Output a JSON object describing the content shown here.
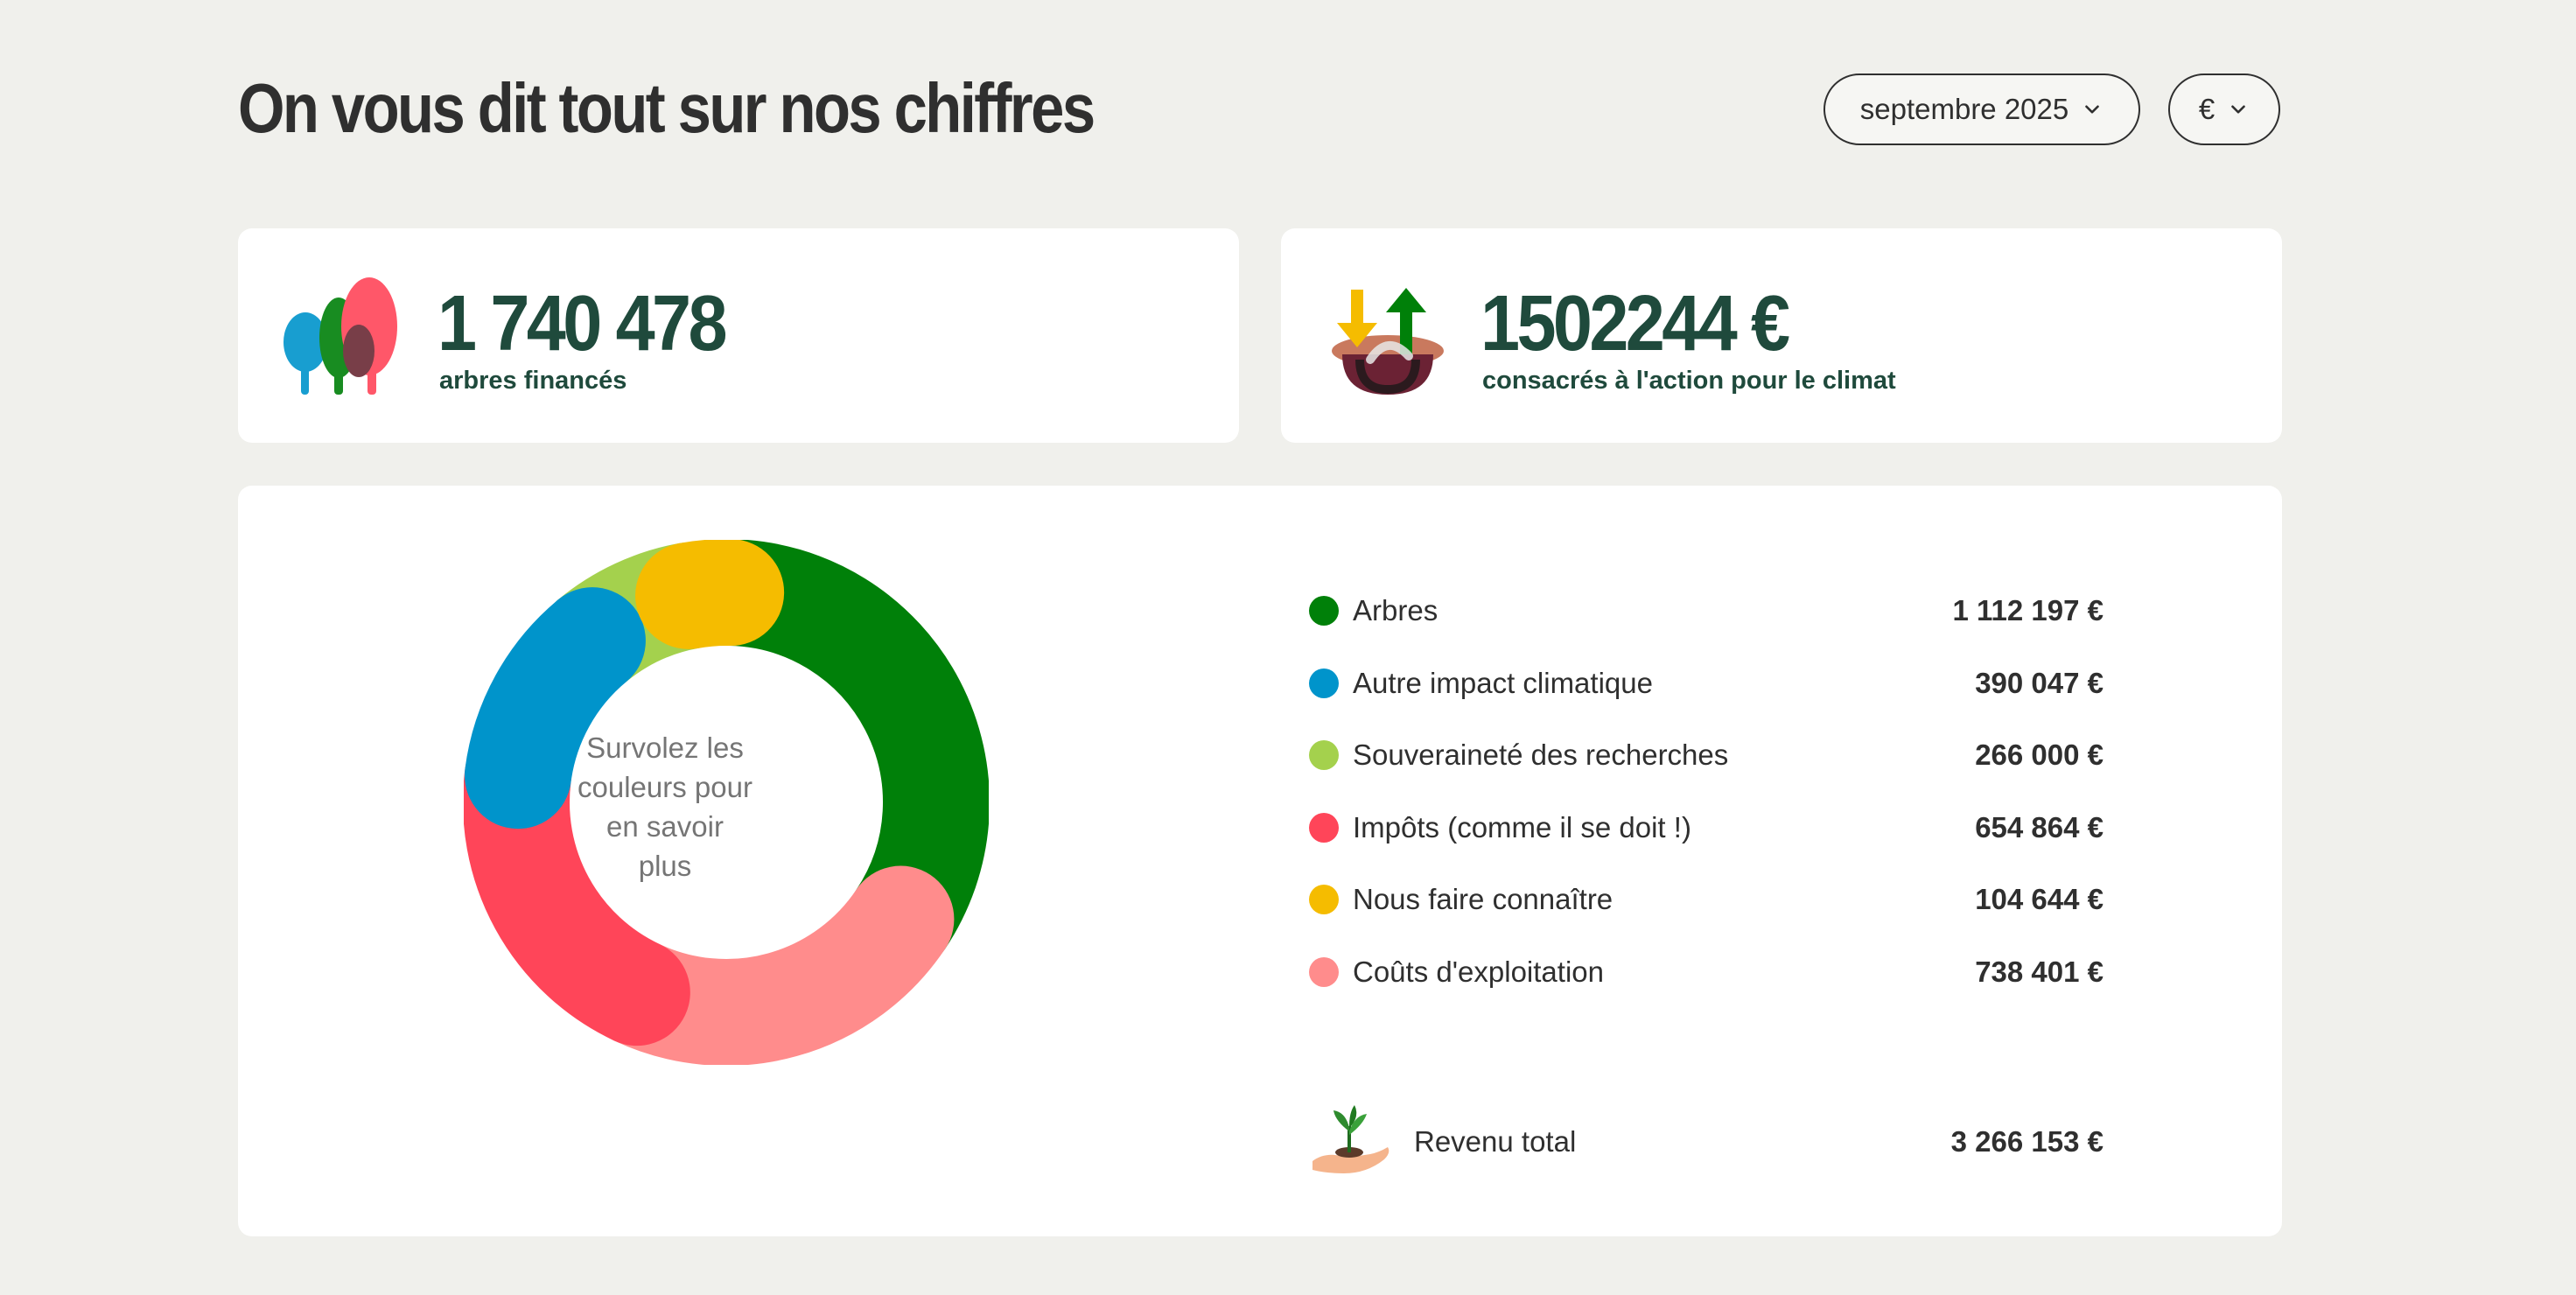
{
  "header": {
    "title": "On vous dit tout sur nos chiffres",
    "month_select": "septembre 2025",
    "currency_select": "€"
  },
  "stats": [
    {
      "value": "1 740 478",
      "label": "arbres financés",
      "icon": "trees-icon"
    },
    {
      "value": "1502244 €",
      "label": "consacrés à l'action pour le climat",
      "icon": "climate-action-icon"
    }
  ],
  "breakdown": {
    "hint": "Survolez les couleurs pour en savoir plus",
    "items": [
      {
        "label": "Arbres",
        "value": "1 112 197 €",
        "amount": 1112197,
        "color": "#008009"
      },
      {
        "label": "Autre impact climatique",
        "value": "390 047 €",
        "amount": 390047,
        "color": "#0094cb"
      },
      {
        "label": "Souveraineté des recherches",
        "value": "266 000 €",
        "amount": 266000,
        "color": "#a4d14d"
      },
      {
        "label": "Impôts (comme il se doit !)",
        "value": "654 864 €",
        "amount": 654864,
        "color": "#ff4559"
      },
      {
        "label": "Nous faire connaître",
        "value": "104 644 €",
        "amount": 104644,
        "color": "#f5bc00"
      },
      {
        "label": "Coûts d'exploitation",
        "value": "738 401 €",
        "amount": 738401,
        "color": "#ff8c8c"
      }
    ],
    "total_label": "Revenu total",
    "total_value": "3 266 153 €",
    "total_icon": "seedling-hand-icon"
  }
}
